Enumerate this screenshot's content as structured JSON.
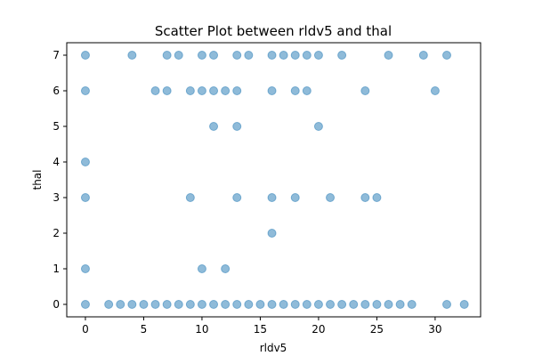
{
  "chart_data": {
    "type": "scatter",
    "title": "Scatter Plot between rldv5 and thal",
    "xlabel": "rldv5",
    "ylabel": "thal",
    "xlim": [
      -1.6,
      33.9
    ],
    "ylim": [
      -0.35,
      7.35
    ],
    "xticks": [
      0,
      5,
      10,
      15,
      20,
      25,
      30
    ],
    "yticks": [
      0,
      1,
      2,
      3,
      4,
      5,
      6,
      7
    ],
    "grid": false,
    "legend": "none",
    "point_color": "#1f77b4",
    "point_alpha": 0.5,
    "series": [
      {
        "points": [
          [
            0,
            7
          ],
          [
            0,
            6
          ],
          [
            0,
            4
          ],
          [
            0,
            3
          ],
          [
            0,
            1
          ],
          [
            0,
            0
          ],
          [
            4,
            7
          ],
          [
            7,
            7
          ],
          [
            8,
            7
          ],
          [
            10,
            7
          ],
          [
            11,
            7
          ],
          [
            13,
            7
          ],
          [
            14,
            7
          ],
          [
            16,
            7
          ],
          [
            17,
            7
          ],
          [
            18,
            7
          ],
          [
            19,
            7
          ],
          [
            20,
            7
          ],
          [
            22,
            7
          ],
          [
            26,
            7
          ],
          [
            29,
            7
          ],
          [
            31,
            7
          ],
          [
            6,
            6
          ],
          [
            7,
            6
          ],
          [
            9,
            6
          ],
          [
            10,
            6
          ],
          [
            11,
            6
          ],
          [
            12,
            6
          ],
          [
            13,
            6
          ],
          [
            16,
            6
          ],
          [
            18,
            6
          ],
          [
            19,
            6
          ],
          [
            24,
            6
          ],
          [
            30,
            6
          ],
          [
            11,
            5
          ],
          [
            13,
            5
          ],
          [
            20,
            5
          ],
          [
            9,
            3
          ],
          [
            13,
            3
          ],
          [
            16,
            3
          ],
          [
            18,
            3
          ],
          [
            21,
            3
          ],
          [
            24,
            3
          ],
          [
            25,
            3
          ],
          [
            16,
            2
          ],
          [
            10,
            1
          ],
          [
            12,
            1
          ],
          [
            2,
            0
          ],
          [
            3,
            0
          ],
          [
            4,
            0
          ],
          [
            5,
            0
          ],
          [
            6,
            0
          ],
          [
            7,
            0
          ],
          [
            8,
            0
          ],
          [
            9,
            0
          ],
          [
            10,
            0
          ],
          [
            11,
            0
          ],
          [
            12,
            0
          ],
          [
            13,
            0
          ],
          [
            14,
            0
          ],
          [
            15,
            0
          ],
          [
            16,
            0
          ],
          [
            17,
            0
          ],
          [
            18,
            0
          ],
          [
            19,
            0
          ],
          [
            20,
            0
          ],
          [
            21,
            0
          ],
          [
            22,
            0
          ],
          [
            23,
            0
          ],
          [
            24,
            0
          ],
          [
            25,
            0
          ],
          [
            26,
            0
          ],
          [
            27,
            0
          ],
          [
            28,
            0
          ],
          [
            31,
            0
          ],
          [
            32.5,
            0
          ]
        ]
      }
    ]
  }
}
